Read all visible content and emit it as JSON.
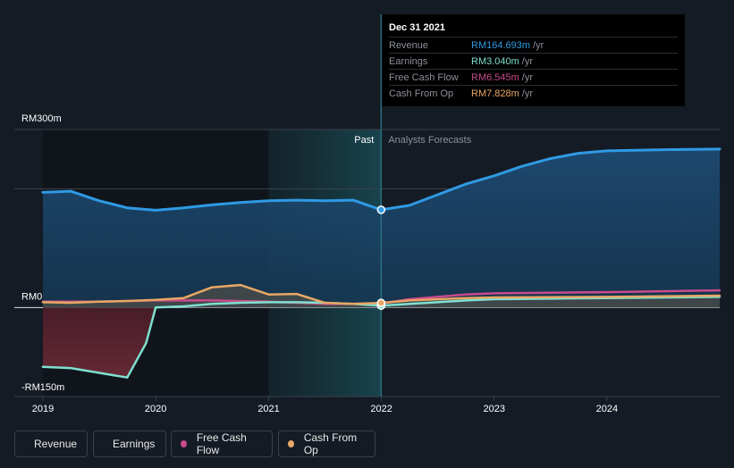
{
  "chart_data": {
    "type": "area",
    "y_axis": {
      "tick_labels": [
        "RM300m",
        "RM0",
        "-RM150m"
      ],
      "ylim": [
        -150,
        300
      ],
      "unit": "RM m"
    },
    "x_axis": {
      "tick_labels": [
        "2019",
        "2020",
        "2021",
        "2022",
        "2023",
        "2024"
      ],
      "xlim": [
        "2019-01-01",
        "2024-12-31"
      ]
    },
    "sections": {
      "past_label": "Past",
      "forecast_label": "Analysts Forecasts",
      "divider_date": "2021-12-31",
      "highlight_start_date": "2021-01-01"
    },
    "series": [
      {
        "name": "Revenue",
        "color": "#2f9ae4",
        "points": [
          [
            "2019-01-01",
            194
          ],
          [
            "2019-04-01",
            196
          ],
          [
            "2019-07-01",
            180
          ],
          [
            "2019-10-01",
            168
          ],
          [
            "2020-01-01",
            164
          ],
          [
            "2020-04-01",
            168
          ],
          [
            "2020-07-01",
            173
          ],
          [
            "2020-10-01",
            177
          ],
          [
            "2021-01-01",
            180
          ],
          [
            "2021-04-01",
            181
          ],
          [
            "2021-07-01",
            180
          ],
          [
            "2021-10-01",
            181
          ],
          [
            "2021-12-31",
            164.693
          ],
          [
            "2022-04-01",
            172
          ],
          [
            "2022-07-01",
            190
          ],
          [
            "2022-10-01",
            208
          ],
          [
            "2023-01-01",
            222
          ],
          [
            "2023-04-01",
            238
          ],
          [
            "2023-07-01",
            251
          ],
          [
            "2023-10-01",
            260
          ],
          [
            "2024-01-01",
            264
          ],
          [
            "2024-04-01",
            265
          ],
          [
            "2024-07-01",
            266
          ],
          [
            "2024-12-31",
            267
          ]
        ]
      },
      {
        "name": "Earnings",
        "color": "#7fe0d0",
        "points": [
          [
            "2019-01-01",
            -100
          ],
          [
            "2019-04-01",
            -102
          ],
          [
            "2019-07-01",
            -110
          ],
          [
            "2019-10-01",
            -118
          ],
          [
            "2019-12-01",
            -60
          ],
          [
            "2020-01-01",
            0
          ],
          [
            "2020-04-01",
            2
          ],
          [
            "2020-07-01",
            6
          ],
          [
            "2020-10-01",
            8
          ],
          [
            "2021-01-01",
            9
          ],
          [
            "2021-04-01",
            9
          ],
          [
            "2021-07-01",
            8
          ],
          [
            "2021-10-01",
            6
          ],
          [
            "2021-12-31",
            3.04
          ],
          [
            "2022-04-01",
            6
          ],
          [
            "2022-07-01",
            9
          ],
          [
            "2022-10-01",
            12
          ],
          [
            "2023-01-01",
            14
          ],
          [
            "2023-07-01",
            15
          ],
          [
            "2024-01-01",
            16
          ],
          [
            "2024-12-31",
            18
          ]
        ]
      },
      {
        "name": "Free Cash Flow",
        "color": "#c94b8c",
        "points": [
          [
            "2019-01-01",
            10
          ],
          [
            "2019-07-01",
            10
          ],
          [
            "2020-01-01",
            12
          ],
          [
            "2020-07-01",
            12
          ],
          [
            "2021-01-01",
            10
          ],
          [
            "2021-07-01",
            6
          ],
          [
            "2021-12-31",
            6.545
          ],
          [
            "2022-04-01",
            14
          ],
          [
            "2022-10-01",
            22
          ],
          [
            "2023-01-01",
            24
          ],
          [
            "2023-07-01",
            25
          ],
          [
            "2024-01-01",
            26
          ],
          [
            "2024-12-31",
            29
          ]
        ]
      },
      {
        "name": "Cash From Op",
        "color": "#e8a765",
        "points": [
          [
            "2019-01-01",
            9
          ],
          [
            "2019-04-01",
            8
          ],
          [
            "2019-07-01",
            10
          ],
          [
            "2019-10-01",
            11
          ],
          [
            "2020-01-01",
            13
          ],
          [
            "2020-04-01",
            16
          ],
          [
            "2020-07-01",
            34
          ],
          [
            "2020-10-01",
            38
          ],
          [
            "2021-01-01",
            22
          ],
          [
            "2021-04-01",
            23
          ],
          [
            "2021-07-01",
            8
          ],
          [
            "2021-10-01",
            6
          ],
          [
            "2021-12-31",
            7.828
          ],
          [
            "2022-04-01",
            12
          ],
          [
            "2022-10-01",
            16
          ],
          [
            "2023-01-01",
            17
          ],
          [
            "2024-01-01",
            18
          ],
          [
            "2024-12-31",
            20
          ]
        ]
      }
    ]
  },
  "tooltip": {
    "date": "Dec 31 2021",
    "rows": [
      {
        "label": "Revenue",
        "value": "RM164.693m",
        "unit": "/yr",
        "color": "#2f9ae4"
      },
      {
        "label": "Earnings",
        "value": "RM3.040m",
        "unit": "/yr",
        "color": "#7fe0d0"
      },
      {
        "label": "Free Cash Flow",
        "value": "RM6.545m",
        "unit": "/yr",
        "color": "#c94b8c"
      },
      {
        "label": "Cash From Op",
        "value": "RM7.828m",
        "unit": "/yr",
        "color": "#e8a765"
      }
    ]
  },
  "legend": [
    {
      "label": "Revenue",
      "color": "#2f9ae4"
    },
    {
      "label": "Earnings",
      "color": "#7fe0d0"
    },
    {
      "label": "Free Cash Flow",
      "color": "#c94b8c"
    },
    {
      "label": "Cash From Op",
      "color": "#e8a765"
    }
  ]
}
